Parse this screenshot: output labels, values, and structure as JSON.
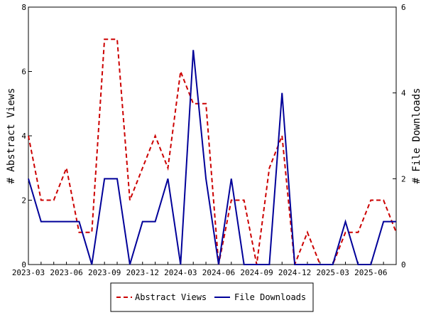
{
  "chart_data": {
    "type": "line",
    "title": "",
    "xlabel": "",
    "ylabel": "# Abstract Views",
    "y2label": "# File Downloads",
    "ylim": [
      0,
      8
    ],
    "y2lim": [
      0,
      6
    ],
    "yticks": [
      0,
      2,
      4,
      6,
      8
    ],
    "y2ticks": [
      0,
      2,
      4,
      6
    ],
    "grid": false,
    "legend_position": "bottom",
    "x": [
      "2023-03",
      "2023-04",
      "2023-05",
      "2023-06",
      "2023-07",
      "2023-08",
      "2023-09",
      "2023-10",
      "2023-11",
      "2023-12",
      "2024-01",
      "2024-02",
      "2024-03",
      "2024-04",
      "2024-05",
      "2024-06",
      "2024-07",
      "2024-08",
      "2024-09",
      "2024-10",
      "2024-11",
      "2024-12",
      "2025-01",
      "2025-02",
      "2025-03",
      "2025-04",
      "2025-05",
      "2025-06",
      "2025-07",
      "2025-08"
    ],
    "x_tick_labels": [
      "2023-03",
      "2023-06",
      "2023-09",
      "2023-12",
      "2024-03",
      "2024-06",
      "2024-09",
      "2024-12",
      "2025-03",
      "2025-06"
    ],
    "series": [
      {
        "name": "Abstract Views",
        "axis": "left",
        "color": "#cc0000",
        "dash": true,
        "values": [
          4,
          2,
          2,
          3,
          1,
          1,
          7,
          7,
          2,
          3,
          4,
          3,
          6,
          5,
          5,
          0,
          2,
          2,
          0,
          3,
          4,
          0,
          1,
          0,
          0,
          1,
          1,
          2,
          2,
          1
        ]
      },
      {
        "name": "File Downloads",
        "axis": "right",
        "color": "#000099",
        "dash": false,
        "values": [
          2,
          1,
          1,
          1,
          1,
          0,
          2,
          2,
          0,
          1,
          1,
          2,
          0,
          5,
          2,
          0,
          2,
          0,
          0,
          0,
          4,
          0,
          0,
          0,
          0,
          1,
          0,
          0,
          1,
          1
        ]
      }
    ]
  }
}
